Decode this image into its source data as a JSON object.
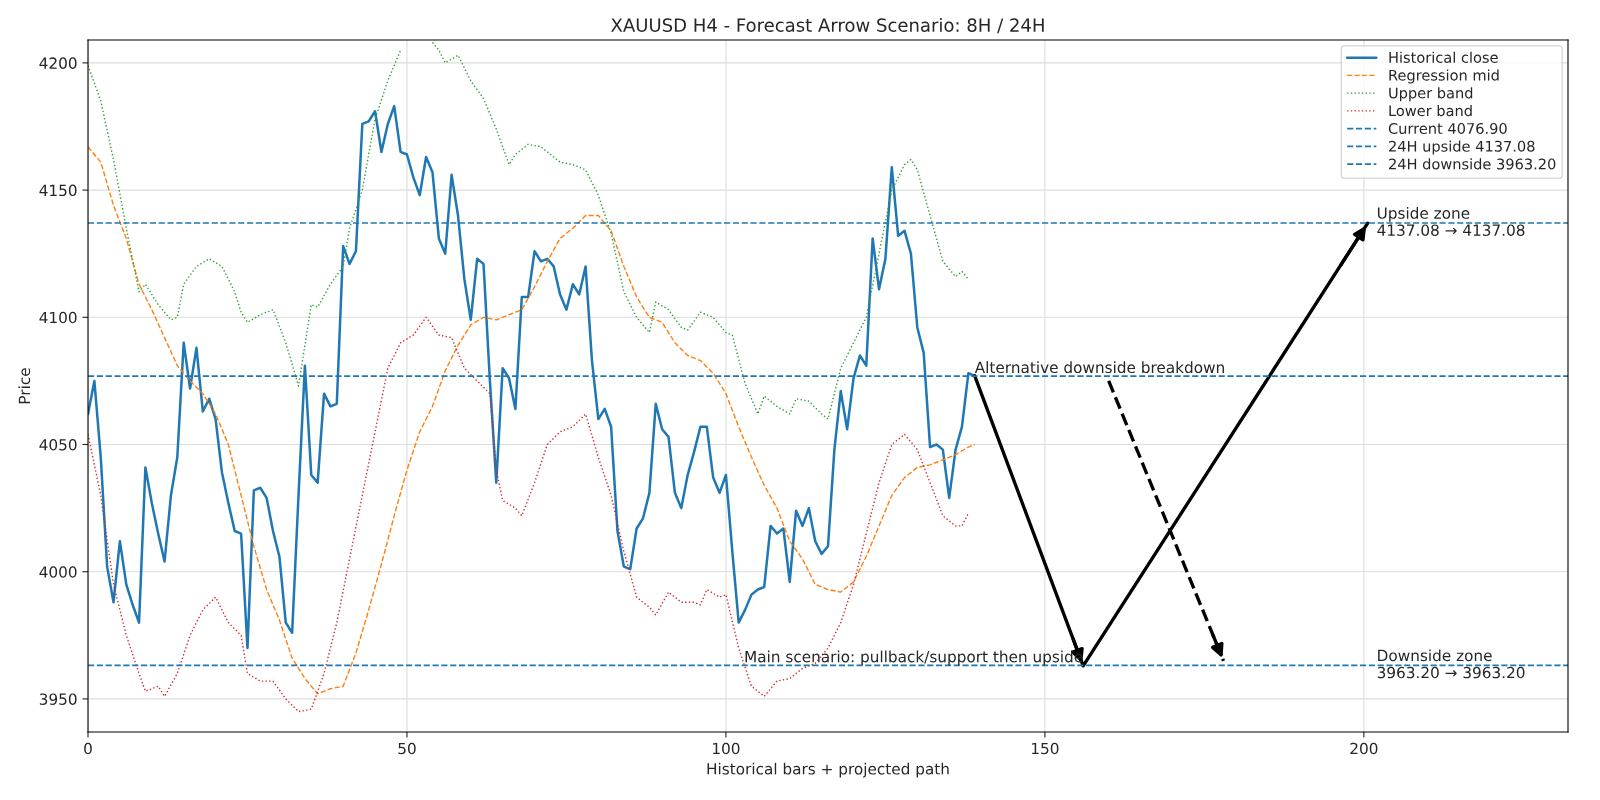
{
  "chart_data": {
    "type": "line",
    "title": "XAUUSD H4 - Forecast Arrow Scenario: 8H / 24H",
    "xlabel": "Historical bars + projected path",
    "ylabel": "Price",
    "xlim": [
      0,
      232
    ],
    "xticks": [
      0,
      50,
      100,
      150,
      200
    ],
    "ylim": [
      3937,
      4209
    ],
    "yticks": [
      3950,
      4000,
      4050,
      4100,
      4150,
      4200
    ],
    "grid": true,
    "legend": "top right",
    "series": [
      {
        "name": "Historical close",
        "color": "#1f77b4",
        "line_style": "solid",
        "x": [
          0,
          1,
          2,
          3,
          4,
          5,
          6,
          7,
          8,
          9,
          10,
          11,
          12,
          13,
          14,
          15,
          16,
          17,
          18,
          19,
          20,
          21,
          22,
          23,
          24,
          25,
          26,
          27,
          28,
          29,
          30,
          31,
          32,
          33,
          34,
          35,
          36,
          37,
          38,
          39,
          40,
          41,
          42,
          43,
          44,
          45,
          46,
          47,
          48,
          49,
          50,
          51,
          52,
          53,
          54,
          55,
          56,
          57,
          58,
          59,
          60,
          61,
          62,
          63,
          64,
          65,
          66,
          67,
          68,
          69,
          70,
          71,
          72,
          73,
          74,
          75,
          76,
          77,
          78,
          79,
          80,
          81,
          82,
          83,
          84,
          85,
          86,
          87,
          88,
          89,
          90,
          91,
          92,
          93,
          94,
          95,
          96,
          97,
          98,
          99,
          100,
          101,
          102,
          103,
          104,
          105,
          106,
          107,
          108,
          109,
          110,
          111,
          112,
          113,
          114,
          115,
          116,
          117,
          118,
          119,
          120,
          121,
          122,
          123,
          124,
          125,
          126,
          127,
          128,
          129,
          130,
          131,
          132,
          133,
          134,
          135,
          136,
          137,
          138,
          139
        ],
        "values": [
          4062,
          4075,
          4045,
          4002,
          3988,
          4012,
          3995,
          3987,
          3980,
          4041,
          4027,
          4015,
          4004,
          4030,
          4045,
          4090,
          4072,
          4088,
          4063,
          4068,
          4060,
          4039,
          4027,
          4016,
          4015,
          3970,
          4032,
          4033,
          4029,
          4016,
          4006,
          3980,
          3976,
          4030,
          4081,
          4038,
          4035,
          4070,
          4065,
          4066,
          4128,
          4121,
          4126,
          4176,
          4177,
          4181,
          4165,
          4176,
          4183,
          4165,
          4164,
          4155,
          4148,
          4163,
          4157,
          4131,
          4125,
          4156,
          4140,
          4115,
          4099,
          4123,
          4121,
          4075,
          4035,
          4080,
          4076,
          4064,
          4108,
          4108,
          4126,
          4122,
          4123,
          4120,
          4109,
          4103,
          4113,
          4109,
          4120,
          4083,
          4060,
          4064,
          4057,
          4016,
          4002,
          4001,
          4017,
          4021,
          4031,
          4066,
          4056,
          4053,
          4031,
          4025,
          4038,
          4047,
          4057,
          4057,
          4037,
          4031,
          4038,
          4008,
          3980,
          3985,
          3991,
          3993,
          3994,
          4018,
          4015,
          4017,
          3996,
          4024,
          4018,
          4025,
          4012,
          4007,
          4010,
          4048,
          4071,
          4056,
          4076,
          4085,
          4081,
          4131,
          4111,
          4123,
          4159,
          4132,
          4134,
          4125,
          4096,
          4086,
          4049,
          4050,
          4048,
          4029,
          4048,
          4057,
          4078,
          4077
        ]
      },
      {
        "name": "Regression mid",
        "color": "#ff7f0e",
        "line_style": "dashed",
        "x": [
          0,
          2,
          4,
          6,
          8,
          10,
          12,
          14,
          16,
          18,
          20,
          22,
          24,
          26,
          28,
          30,
          32,
          34,
          36,
          38,
          40,
          42,
          44,
          46,
          48,
          50,
          52,
          54,
          56,
          58,
          60,
          62,
          64,
          66,
          68,
          70,
          72,
          74,
          76,
          78,
          80,
          82,
          84,
          86,
          88,
          90,
          92,
          94,
          96,
          98,
          100,
          102,
          104,
          106,
          108,
          110,
          112,
          114,
          116,
          118,
          120,
          122,
          124,
          126,
          128,
          130,
          132,
          134,
          136,
          138,
          139
        ],
        "values": [
          4167,
          4161,
          4144,
          4131,
          4113,
          4103,
          4092,
          4081,
          4075,
          4070,
          4062,
          4050,
          4030,
          4010,
          3993,
          3981,
          3966,
          3958,
          3952,
          3954,
          3955,
          3968,
          3985,
          4003,
          4022,
          4040,
          4055,
          4065,
          4079,
          4089,
          4097,
          4100,
          4099,
          4101,
          4103,
          4112,
          4122,
          4131,
          4135,
          4140,
          4140,
          4134,
          4120,
          4108,
          4100,
          4098,
          4090,
          4085,
          4083,
          4078,
          4070,
          4057,
          4045,
          4034,
          4025,
          4012,
          4005,
          3995,
          3993,
          3992,
          3996,
          4006,
          4018,
          4030,
          4037,
          4041,
          4042,
          4044,
          4046,
          4049,
          4050
        ]
      },
      {
        "name": "Upper band",
        "color": "#2ca02c",
        "line_style": "dotted",
        "x": [
          0,
          2,
          4,
          6,
          8,
          9,
          11,
          13,
          14,
          15,
          17,
          19,
          21,
          23,
          24,
          25,
          27,
          29,
          31,
          33,
          35,
          36,
          38,
          40,
          41,
          43,
          45,
          47,
          49,
          51,
          52,
          53,
          54,
          55,
          56,
          58,
          60,
          62,
          64,
          66,
          67,
          69,
          71,
          73,
          74,
          76,
          78,
          80,
          82,
          84,
          86,
          88,
          89,
          91,
          93,
          94,
          96,
          98,
          100,
          101,
          103,
          105,
          106,
          108,
          110,
          111,
          113,
          115,
          116,
          118,
          120,
          122,
          124,
          126,
          128,
          129,
          130,
          132,
          134,
          136,
          137,
          138
        ],
        "values": [
          4199,
          4185,
          4162,
          4135,
          4110,
          4113,
          4105,
          4099,
          4100,
          4113,
          4120,
          4123,
          4120,
          4110,
          4102,
          4098,
          4101,
          4103,
          4090,
          4073,
          4105,
          4104,
          4113,
          4120,
          4135,
          4150,
          4178,
          4193,
          4205,
          null,
          null,
          null,
          4208,
          4205,
          4200,
          4203,
          4193,
          4186,
          4174,
          4160,
          4164,
          4168,
          4167,
          4163,
          4161,
          4160,
          4158,
          4148,
          4133,
          4110,
          4100,
          4094,
          4106,
          4103,
          4096,
          4095,
          4102,
          4100,
          4094,
          4093,
          4074,
          4062,
          4069,
          4065,
          4062,
          4068,
          4067,
          4062,
          4060,
          4080,
          4090,
          4100,
          4125,
          4150,
          4160,
          4162,
          4158,
          4140,
          4122,
          4116,
          4118,
          4115
        ]
      },
      {
        "name": "Lower band",
        "color": "#d62728",
        "line_style": "dotted",
        "x": [
          0,
          2,
          4,
          6,
          8,
          9,
          11,
          12,
          14,
          16,
          18,
          20,
          22,
          24,
          25,
          27,
          29,
          31,
          33,
          35,
          37,
          39,
          41,
          43,
          45,
          47,
          49,
          51,
          53,
          55,
          57,
          59,
          61,
          63,
          64,
          65,
          67,
          68,
          70,
          72,
          74,
          76,
          78,
          80,
          82,
          84,
          86,
          88,
          89,
          91,
          93,
          95,
          96,
          97,
          99,
          100,
          102,
          104,
          106,
          108,
          110,
          112,
          114,
          116,
          118,
          120,
          122,
          124,
          126,
          128,
          130,
          132,
          134,
          136,
          137,
          138
        ],
        "values": [
          4054,
          4030,
          3995,
          3975,
          3960,
          3953,
          3955,
          3951,
          3960,
          3975,
          3985,
          3990,
          3980,
          3975,
          3960,
          3957,
          3957,
          3950,
          3945,
          3946,
          3960,
          3980,
          4005,
          4030,
          4055,
          4080,
          4090,
          4093,
          4100,
          4093,
          4092,
          4080,
          4075,
          4070,
          4040,
          4028,
          4025,
          4022,
          4035,
          4050,
          4055,
          4057,
          4062,
          4045,
          4030,
          4008,
          3990,
          3986,
          3983,
          3992,
          3988,
          3988,
          3987,
          3993,
          3990,
          3991,
          3970,
          3955,
          3951,
          3957,
          3958,
          3962,
          3964,
          3970,
          3980,
          3995,
          4015,
          4035,
          4050,
          4054,
          4048,
          4035,
          4022,
          4018,
          4018,
          4023
        ]
      },
      {
        "color": "#000000",
        "line_style": "solid",
        "x": [
          139,
          156,
          200.6
        ],
        "values": [
          4077,
          3963,
          4137
        ]
      },
      {
        "color": "#000000",
        "line_style": "dashed",
        "x": [
          160,
          178
        ],
        "values": [
          4075,
          3965
        ]
      }
    ],
    "ref_lines": [
      {
        "axis": "y",
        "value": 4076.9,
        "label": "Current 4076.90",
        "color": "#1f77b4",
        "line_style": "dashed"
      },
      {
        "axis": "y",
        "value": 4137.08,
        "label": "24H upside 4137.08",
        "color": "#1f77b4",
        "line_style": "dashed"
      },
      {
        "axis": "y",
        "value": 3963.2,
        "label": "24H downside 3963.20",
        "color": "#1f77b4",
        "line_style": "dashed"
      }
    ],
    "annotations": [
      {
        "text": "Alternative downside breakdown",
        "x": 139,
        "y": 4076.9
      },
      {
        "text": "Main scenario: pullback/support then upside",
        "x": 156,
        "y": 3963.2
      },
      {
        "text": "Upside zone\n4137.08 → 4137.08",
        "x": 202,
        "y": 4137.08
      },
      {
        "text": "Downside zone\n3963.20 → 3963.20",
        "x": 202,
        "y": 3963.2
      }
    ]
  }
}
